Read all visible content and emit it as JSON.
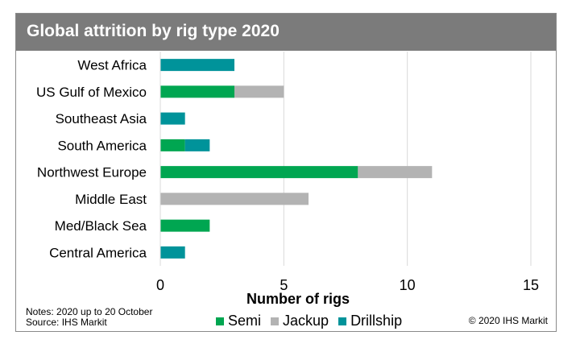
{
  "header": {
    "title": "Global attrition by rig type 2020"
  },
  "notes": {
    "line1": "Notes: 2020 up to 20 October",
    "line2": "Source: IHS Markit"
  },
  "copyright": "© 2020 IHS Markit",
  "colors": {
    "semi": "#00a651",
    "jackup": "#b3b3b3",
    "drillship": "#00939a",
    "grid": "#d9d9d9",
    "title_bg": "#7b7b7b"
  },
  "chart_data": {
    "type": "bar",
    "orientation": "horizontal",
    "stacked": true,
    "categories": [
      "West Africa",
      "US Gulf of Mexico",
      "Southeast Asia",
      "South America",
      "Northwest Europe",
      "Middle East",
      "Med/Black Sea",
      "Central America"
    ],
    "series": [
      {
        "name": "Semi",
        "color": "#00a651",
        "values": [
          0,
          3,
          0,
          1,
          8,
          0,
          2,
          0
        ]
      },
      {
        "name": "Jackup",
        "color": "#b3b3b3",
        "values": [
          0,
          2,
          0,
          0,
          3,
          6,
          0,
          0
        ]
      },
      {
        "name": "Drillship",
        "color": "#00939a",
        "values": [
          3,
          0,
          1,
          1,
          0,
          0,
          0,
          1
        ]
      }
    ],
    "xlabel": "Number of rigs",
    "ylabel": "",
    "xlim": [
      0,
      15
    ],
    "xticks": [
      "0",
      "5",
      "10",
      "15"
    ],
    "grid": true,
    "legend": "bottom"
  }
}
